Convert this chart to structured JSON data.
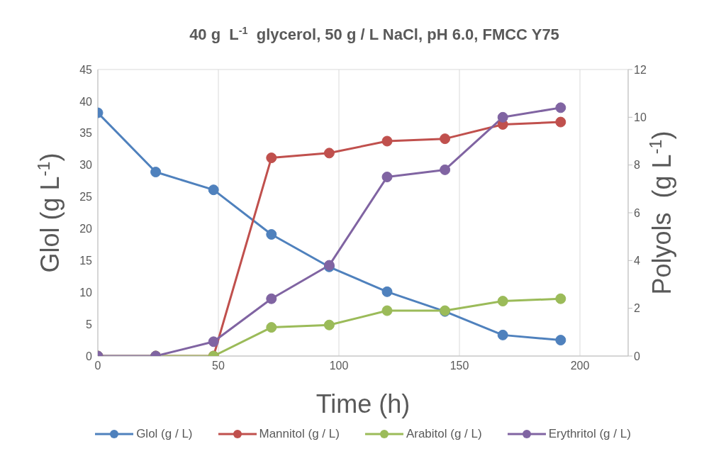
{
  "chart_data": {
    "type": "line",
    "title": "40 g  L$^{-1}$  glycerol, 50 g / L NaCl, pH 6.0, FMCC Y75",
    "xlabel": "Time (h)",
    "ylabel": "Glol (g L$^{-1}$)",
    "y2label": "Polyols  (g L$^{-1}$)",
    "x": [
      0,
      24,
      48,
      72,
      96,
      120,
      144,
      168,
      192
    ],
    "series": [
      {
        "name": "Glol (g / L)",
        "color": "#4f81bd",
        "values": [
          38.2,
          28.9,
          26.1,
          19.1,
          14.0,
          10.1,
          7.0,
          3.3,
          2.5
        ]
      },
      {
        "name": "Mannitol (g / L)",
        "color": "#c0504d",
        "axis": "y2",
        "values": [
          0,
          0,
          0,
          8.3,
          8.5,
          9.0,
          9.1,
          9.7,
          9.8
        ]
      },
      {
        "name": "Arabitol (g / L)",
        "color": "#9bbb59",
        "axis": "y2",
        "values": [
          0,
          0,
          0,
          1.2,
          1.3,
          1.9,
          1.9,
          2.3,
          2.4
        ]
      },
      {
        "name": "Erythritol (g / L)",
        "color": "#8064a2",
        "axis": "y2",
        "values": [
          0,
          0,
          0.6,
          2.4,
          3.8,
          7.5,
          7.8,
          10.0,
          10.4
        ]
      }
    ],
    "xlim": [
      0,
      220
    ],
    "xticks": [
      0,
      50,
      100,
      150,
      200
    ],
    "ylim": [
      0,
      45
    ],
    "yticks": [
      0,
      5,
      10,
      15,
      20,
      25,
      30,
      35,
      40,
      45
    ],
    "y2lim": [
      0,
      12
    ],
    "y2ticks": [
      0,
      2,
      4,
      6,
      8,
      10,
      12
    ],
    "grid": true,
    "legend": "bottom",
    "marker": "circle",
    "line_style": "solid"
  }
}
